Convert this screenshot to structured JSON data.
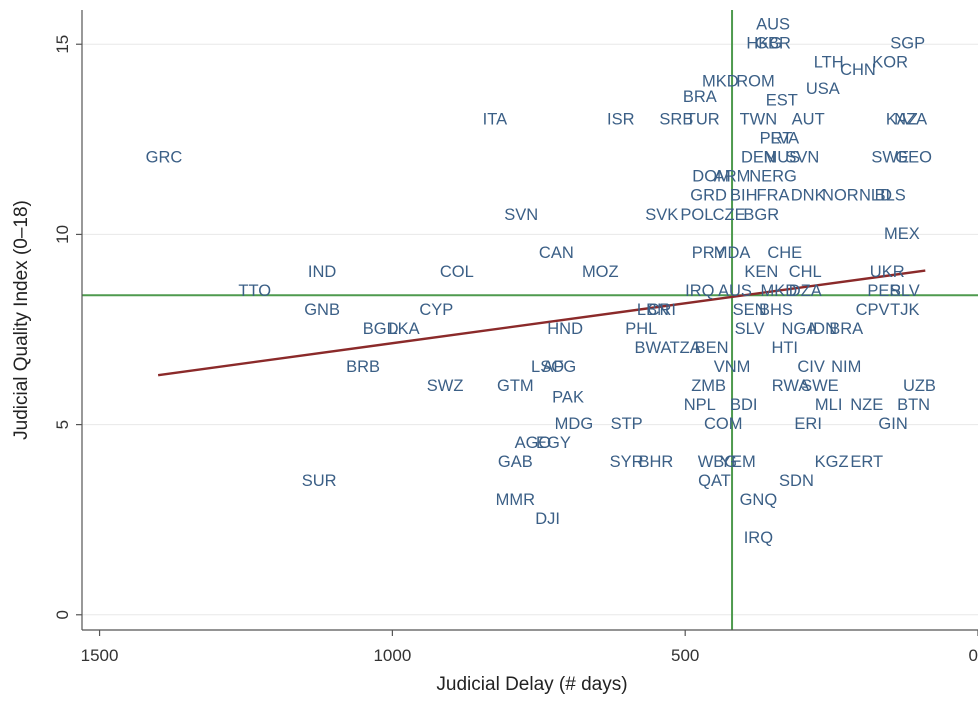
{
  "chart_data": {
    "type": "scatter",
    "xlabel": "Judicial Delay (# days)",
    "ylabel": "Judicial Quality Index (0–18)",
    "xlim": [
      1530,
      0
    ],
    "ylim": [
      -0.4,
      15.9
    ],
    "x_reversed": true,
    "x_ticks": [
      "1500",
      "1000",
      "500",
      "0"
    ],
    "y_ticks": [
      "0",
      "5",
      "10",
      "15"
    ],
    "grid": "horizontal",
    "reference_lines": {
      "vertical_x": 420,
      "horizontal_y": 8.4
    },
    "fit_line": {
      "x": [
        1400,
        90
      ],
      "y": [
        6.3,
        9.05
      ]
    },
    "colors": {
      "points": "#3b5f86",
      "reference": "#4e9a4e",
      "fit": "#8b2a2a",
      "grid": "#e8e8e8",
      "axis": "#555555"
    },
    "points": [
      {
        "label": "AUS",
        "x": 350,
        "y": 15.5
      },
      {
        "label": "HKG",
        "x": 365,
        "y": 15.0
      },
      {
        "label": "GBR",
        "x": 350,
        "y": 15.0
      },
      {
        "label": "SGP",
        "x": 120,
        "y": 15.0
      },
      {
        "label": "LTH",
        "x": 255,
        "y": 14.5
      },
      {
        "label": "KOR",
        "x": 150,
        "y": 14.5
      },
      {
        "label": "CHN",
        "x": 205,
        "y": 14.3
      },
      {
        "label": "MKD",
        "x": 440,
        "y": 14.0
      },
      {
        "label": "ROM",
        "x": 380,
        "y": 14.0
      },
      {
        "label": "USA",
        "x": 265,
        "y": 13.8
      },
      {
        "label": "BRA",
        "x": 475,
        "y": 13.6
      },
      {
        "label": "EST",
        "x": 335,
        "y": 13.5
      },
      {
        "label": "ITA",
        "x": 825,
        "y": 13.0
      },
      {
        "label": "ISR",
        "x": 610,
        "y": 13.0
      },
      {
        "label": "SRB",
        "x": 515,
        "y": 13.0
      },
      {
        "label": "TUR",
        "x": 470,
        "y": 13.0
      },
      {
        "label": "TWN",
        "x": 375,
        "y": 13.0
      },
      {
        "label": "AUT",
        "x": 290,
        "y": 13.0
      },
      {
        "label": "KAZ",
        "x": 130,
        "y": 13.0
      },
      {
        "label": "NZA",
        "x": 115,
        "y": 13.0
      },
      {
        "label": "PRT",
        "x": 345,
        "y": 12.5
      },
      {
        "label": "LVA",
        "x": 330,
        "y": 12.5
      },
      {
        "label": "GRC",
        "x": 1390,
        "y": 12.0
      },
      {
        "label": "DEN",
        "x": 375,
        "y": 12.0
      },
      {
        "label": "MUS",
        "x": 335,
        "y": 12.0
      },
      {
        "label": "SVN",
        "x": 300,
        "y": 12.0
      },
      {
        "label": "SWE",
        "x": 150,
        "y": 12.0
      },
      {
        "label": "GEO",
        "x": 110,
        "y": 12.0
      },
      {
        "label": "DOM",
        "x": 455,
        "y": 11.5
      },
      {
        "label": "ARM",
        "x": 420,
        "y": 11.5
      },
      {
        "label": "NERG",
        "x": 350,
        "y": 11.5
      },
      {
        "label": "GRD",
        "x": 460,
        "y": 11.0
      },
      {
        "label": "BIH",
        "x": 400,
        "y": 11.0
      },
      {
        "label": "FRA",
        "x": 350,
        "y": 11.0
      },
      {
        "label": "DNK",
        "x": 290,
        "y": 11.0
      },
      {
        "label": "NOR",
        "x": 235,
        "y": 11.0
      },
      {
        "label": "NLD",
        "x": 175,
        "y": 11.0
      },
      {
        "label": "BLS",
        "x": 150,
        "y": 11.0
      },
      {
        "label": "SVN",
        "x": 780,
        "y": 10.5
      },
      {
        "label": "SVK",
        "x": 540,
        "y": 10.5
      },
      {
        "label": "POL",
        "x": 480,
        "y": 10.5
      },
      {
        "label": "CZE",
        "x": 425,
        "y": 10.5
      },
      {
        "label": "BGR",
        "x": 370,
        "y": 10.5
      },
      {
        "label": "MEX",
        "x": 130,
        "y": 10.0
      },
      {
        "label": "CAN",
        "x": 720,
        "y": 9.5
      },
      {
        "label": "PRY",
        "x": 460,
        "y": 9.5
      },
      {
        "label": "MDA",
        "x": 420,
        "y": 9.5
      },
      {
        "label": "CHE",
        "x": 330,
        "y": 9.5
      },
      {
        "label": "IND",
        "x": 1120,
        "y": 9.0
      },
      {
        "label": "COL",
        "x": 890,
        "y": 9.0
      },
      {
        "label": "MOZ",
        "x": 645,
        "y": 9.0
      },
      {
        "label": "KEN",
        "x": 370,
        "y": 9.0
      },
      {
        "label": "CHL",
        "x": 295,
        "y": 9.0
      },
      {
        "label": "UKR",
        "x": 155,
        "y": 9.0
      },
      {
        "label": "TTO",
        "x": 1235,
        "y": 8.5
      },
      {
        "label": "IRQ",
        "x": 475,
        "y": 8.5
      },
      {
        "label": "AUS",
        "x": 415,
        "y": 8.5
      },
      {
        "label": "MKD",
        "x": 340,
        "y": 8.5
      },
      {
        "label": "DZA",
        "x": 295,
        "y": 8.5
      },
      {
        "label": "PER",
        "x": 160,
        "y": 8.5
      },
      {
        "label": "SLV",
        "x": 125,
        "y": 8.5
      },
      {
        "label": "GNB",
        "x": 1120,
        "y": 8.0
      },
      {
        "label": "CYP",
        "x": 925,
        "y": 8.0
      },
      {
        "label": "LBN",
        "x": 555,
        "y": 8.0
      },
      {
        "label": "CRI",
        "x": 540,
        "y": 8.0
      },
      {
        "label": "SEN",
        "x": 390,
        "y": 8.0
      },
      {
        "label": "BHS",
        "x": 345,
        "y": 8.0
      },
      {
        "label": "CPV",
        "x": 180,
        "y": 8.0
      },
      {
        "label": "TJK",
        "x": 125,
        "y": 8.0
      },
      {
        "label": "BGD",
        "x": 1020,
        "y": 7.5
      },
      {
        "label": "LKA",
        "x": 980,
        "y": 7.5
      },
      {
        "label": "HND",
        "x": 705,
        "y": 7.5
      },
      {
        "label": "PHL",
        "x": 575,
        "y": 7.5
      },
      {
        "label": "SLV",
        "x": 390,
        "y": 7.5
      },
      {
        "label": "NGA",
        "x": 305,
        "y": 7.5
      },
      {
        "label": "IDN",
        "x": 265,
        "y": 7.5
      },
      {
        "label": "BRA",
        "x": 225,
        "y": 7.5
      },
      {
        "label": "BWA",
        "x": 555,
        "y": 7.0
      },
      {
        "label": "TZA",
        "x": 500,
        "y": 7.0
      },
      {
        "label": "BEN",
        "x": 455,
        "y": 7.0
      },
      {
        "label": "HTI",
        "x": 330,
        "y": 7.0
      },
      {
        "label": "BRB",
        "x": 1050,
        "y": 6.5
      },
      {
        "label": "LSO",
        "x": 735,
        "y": 6.5
      },
      {
        "label": "AFG",
        "x": 715,
        "y": 6.5
      },
      {
        "label": "VNM",
        "x": 420,
        "y": 6.5
      },
      {
        "label": "CIV",
        "x": 285,
        "y": 6.5
      },
      {
        "label": "NIM",
        "x": 225,
        "y": 6.5
      },
      {
        "label": "SWZ",
        "x": 910,
        "y": 6.0
      },
      {
        "label": "GTM",
        "x": 790,
        "y": 6.0
      },
      {
        "label": "ZMB",
        "x": 460,
        "y": 6.0
      },
      {
        "label": "RWA",
        "x": 320,
        "y": 6.0
      },
      {
        "label": "SWE",
        "x": 270,
        "y": 6.0
      },
      {
        "label": "UZB",
        "x": 100,
        "y": 6.0
      },
      {
        "label": "PAK",
        "x": 700,
        "y": 5.7
      },
      {
        "label": "NPL",
        "x": 475,
        "y": 5.5
      },
      {
        "label": "BDI",
        "x": 400,
        "y": 5.5
      },
      {
        "label": "MLI",
        "x": 255,
        "y": 5.5
      },
      {
        "label": "NZE",
        "x": 190,
        "y": 5.5
      },
      {
        "label": "BTN",
        "x": 110,
        "y": 5.5
      },
      {
        "label": "MDG",
        "x": 690,
        "y": 5.0
      },
      {
        "label": "STP",
        "x": 600,
        "y": 5.0
      },
      {
        "label": "COM",
        "x": 435,
        "y": 5.0
      },
      {
        "label": "ERI",
        "x": 290,
        "y": 5.0
      },
      {
        "label": "GIN",
        "x": 145,
        "y": 5.0
      },
      {
        "label": "AGO",
        "x": 760,
        "y": 4.5
      },
      {
        "label": "EGY",
        "x": 725,
        "y": 4.5
      },
      {
        "label": "GAB",
        "x": 790,
        "y": 4.0
      },
      {
        "label": "SYR",
        "x": 600,
        "y": 4.0
      },
      {
        "label": "BHR",
        "x": 550,
        "y": 4.0
      },
      {
        "label": "WBG",
        "x": 445,
        "y": 4.0
      },
      {
        "label": "YEM",
        "x": 410,
        "y": 4.0
      },
      {
        "label": "KGZ",
        "x": 250,
        "y": 4.0
      },
      {
        "label": "ERT",
        "x": 190,
        "y": 4.0
      },
      {
        "label": "SUR",
        "x": 1125,
        "y": 3.5
      },
      {
        "label": "QAT",
        "x": 450,
        "y": 3.5
      },
      {
        "label": "SDN",
        "x": 310,
        "y": 3.5
      },
      {
        "label": "MMR",
        "x": 790,
        "y": 3.0
      },
      {
        "label": "GNQ",
        "x": 375,
        "y": 3.0
      },
      {
        "label": "DJI",
        "x": 735,
        "y": 2.5
      },
      {
        "label": "IRQ",
        "x": 375,
        "y": 2.0
      }
    ]
  }
}
